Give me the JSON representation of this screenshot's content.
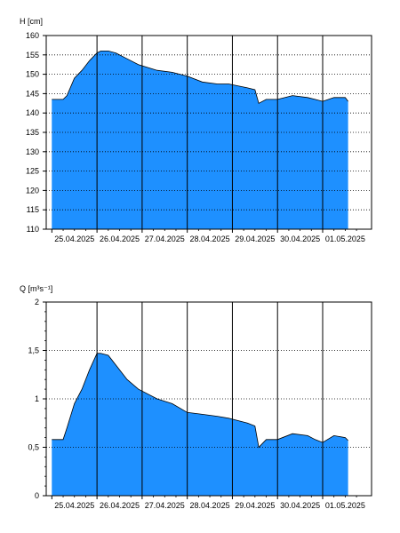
{
  "colors": {
    "fill": "#1e90ff",
    "outline": "#000000",
    "grid": "#000000"
  },
  "chart_data": [
    {
      "type": "area",
      "ylabel": "H [cm]",
      "ylim": [
        110,
        160
      ],
      "yticks": [
        110,
        115,
        120,
        125,
        130,
        135,
        140,
        145,
        150,
        155,
        160
      ],
      "xlim": [
        "2025-04-24T21:00",
        "2025-05-02T02:00"
      ],
      "xticklabels": [
        "25.04.2025",
        "26.04.2025",
        "27.04.2025",
        "28.04.2025",
        "29.04.2025",
        "30.04.2025",
        "01.05.2025"
      ],
      "grid": true,
      "x": [
        "2025-04-25T00:00",
        "2025-04-25T06:00",
        "2025-04-25T08:00",
        "2025-04-25T12:00",
        "2025-04-25T16:00",
        "2025-04-25T20:00",
        "2025-04-26T00:00",
        "2025-04-26T02:00",
        "2025-04-26T06:00",
        "2025-04-26T10:00",
        "2025-04-26T16:00",
        "2025-04-26T22:00",
        "2025-04-27T08:00",
        "2025-04-27T16:00",
        "2025-04-28T00:00",
        "2025-04-28T08:00",
        "2025-04-28T16:00",
        "2025-04-28T22:00",
        "2025-04-29T08:00",
        "2025-04-29T12:00",
        "2025-04-29T14:00",
        "2025-04-29T18:00",
        "2025-04-30T00:00",
        "2025-04-30T08:00",
        "2025-04-30T16:00",
        "2025-04-30T20:00",
        "2025-05-01T00:00",
        "2025-05-01T06:00",
        "2025-05-01T12:00",
        "2025-05-01T13:30"
      ],
      "values": [
        143.5,
        143.5,
        144.5,
        149,
        151,
        153.5,
        155.5,
        156,
        156,
        155.5,
        154,
        152.5,
        151,
        150.5,
        149.5,
        148,
        147.5,
        147.5,
        146.5,
        146,
        142.5,
        143.5,
        143.5,
        144.5,
        144,
        143.5,
        143,
        144,
        144,
        143
      ]
    },
    {
      "type": "area",
      "ylabel": "Q [m³s⁻¹]",
      "ylim": [
        0,
        2
      ],
      "yticks": [
        0,
        0.5,
        1,
        1.5,
        2
      ],
      "ytick_labels": [
        "0",
        "0,5",
        "1",
        "1,5",
        "2"
      ],
      "xlim": [
        "2025-04-24T21:00",
        "2025-05-02T02:00"
      ],
      "xticklabels": [
        "25.04.2025",
        "26.04.2025",
        "27.04.2025",
        "28.04.2025",
        "29.04.2025",
        "30.04.2025",
        "01.05.2025"
      ],
      "grid": true,
      "x": [
        "2025-04-25T00:00",
        "2025-04-25T06:00",
        "2025-04-25T08:00",
        "2025-04-25T12:00",
        "2025-04-25T16:00",
        "2025-04-25T20:00",
        "2025-04-26T00:00",
        "2025-04-26T02:00",
        "2025-04-26T06:00",
        "2025-04-26T10:00",
        "2025-04-26T16:00",
        "2025-04-26T22:00",
        "2025-04-27T08:00",
        "2025-04-27T16:00",
        "2025-04-28T00:00",
        "2025-04-28T08:00",
        "2025-04-28T16:00",
        "2025-04-28T22:00",
        "2025-04-29T08:00",
        "2025-04-29T12:00",
        "2025-04-29T14:00",
        "2025-04-29T18:00",
        "2025-04-30T00:00",
        "2025-04-30T08:00",
        "2025-04-30T16:00",
        "2025-04-30T20:00",
        "2025-05-01T00:00",
        "2025-05-01T06:00",
        "2025-05-01T12:00",
        "2025-05-01T13:30"
      ],
      "values": [
        0.58,
        0.58,
        0.7,
        0.95,
        1.1,
        1.3,
        1.47,
        1.47,
        1.45,
        1.35,
        1.2,
        1.1,
        1.0,
        0.95,
        0.86,
        0.84,
        0.82,
        0.8,
        0.75,
        0.72,
        0.5,
        0.58,
        0.58,
        0.64,
        0.62,
        0.58,
        0.55,
        0.62,
        0.6,
        0.57
      ]
    }
  ]
}
